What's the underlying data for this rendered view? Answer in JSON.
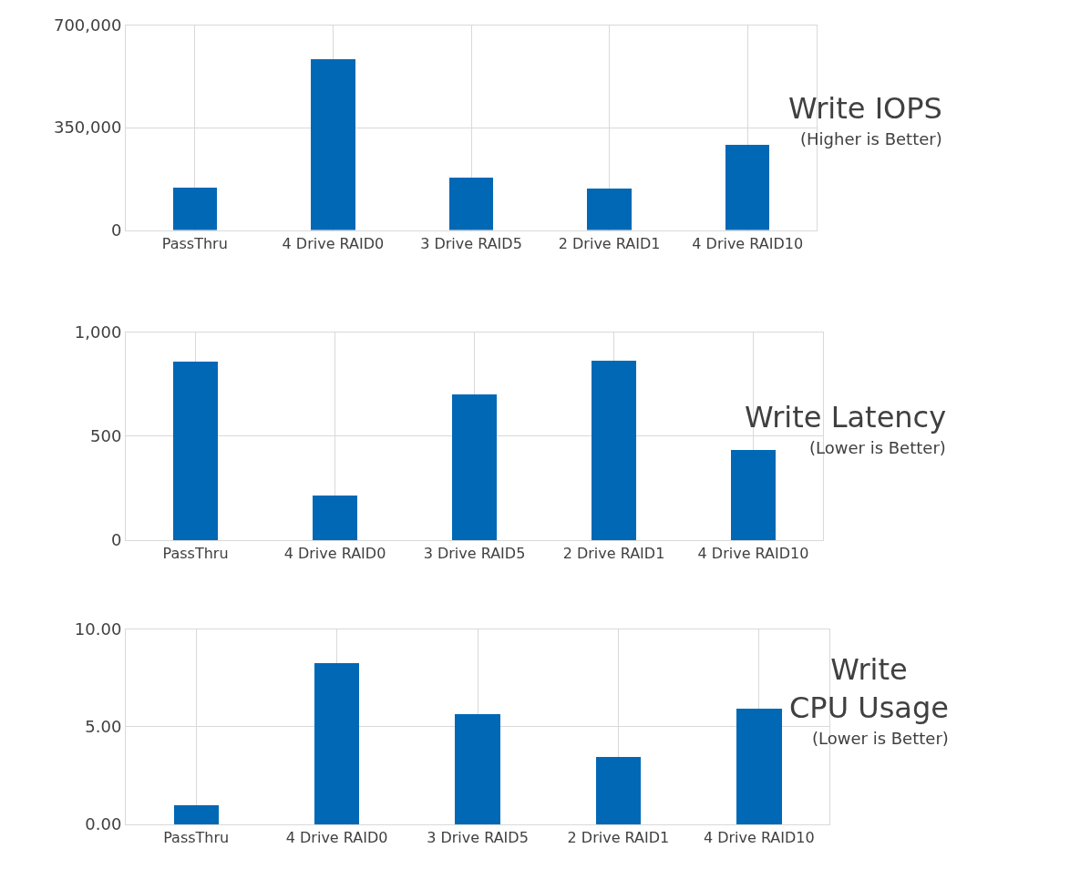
{
  "chart_data": [
    {
      "type": "bar",
      "title": "Write IOPS",
      "subtitle": "(Higher is Better)",
      "categories": [
        "PassThru",
        "4 Drive RAID0",
        "3 Drive RAID5",
        "2 Drive RAID1",
        "4 Drive RAID10"
      ],
      "series": [
        {
          "color": "#0068b5",
          "values": [
            146000,
            584000,
            180000,
            143000,
            292000
          ]
        }
      ],
      "ylim": [
        0,
        700000
      ],
      "yticks": [
        {
          "value": 0,
          "label": "0"
        },
        {
          "value": 350000,
          "label": "350,000"
        },
        {
          "value": 700000,
          "label": "700,000"
        }
      ],
      "grid": true
    },
    {
      "type": "bar",
      "title": "Write Latency",
      "subtitle": "(Lower is Better)",
      "categories": [
        "PassThru",
        "4 Drive RAID0",
        "3 Drive RAID5",
        "2 Drive RAID1",
        "4 Drive RAID10"
      ],
      "series": [
        {
          "color": "#0068b5",
          "values": [
            858,
            215,
            700,
            863,
            433
          ]
        }
      ],
      "ylim": [
        0,
        1000
      ],
      "yticks": [
        {
          "value": 0,
          "label": "0"
        },
        {
          "value": 500,
          "label": "500"
        },
        {
          "value": 1000,
          "label": "1,000"
        }
      ],
      "grid": true
    },
    {
      "type": "bar",
      "title": "Write\nCPU Usage",
      "subtitle": "(Lower is Better)",
      "categories": [
        "PassThru",
        "4 Drive RAID0",
        "3 Drive RAID5",
        "2 Drive RAID1",
        "4 Drive RAID10"
      ],
      "series": [
        {
          "color": "#0068b5",
          "values": [
            1.0,
            8.26,
            5.66,
            3.47,
            5.94
          ]
        }
      ],
      "ylim": [
        0,
        10
      ],
      "yticks": [
        {
          "value": 0,
          "label": "0.00"
        },
        {
          "value": 5,
          "label": "5.00"
        },
        {
          "value": 10,
          "label": "10.00"
        }
      ],
      "grid": true
    }
  ]
}
